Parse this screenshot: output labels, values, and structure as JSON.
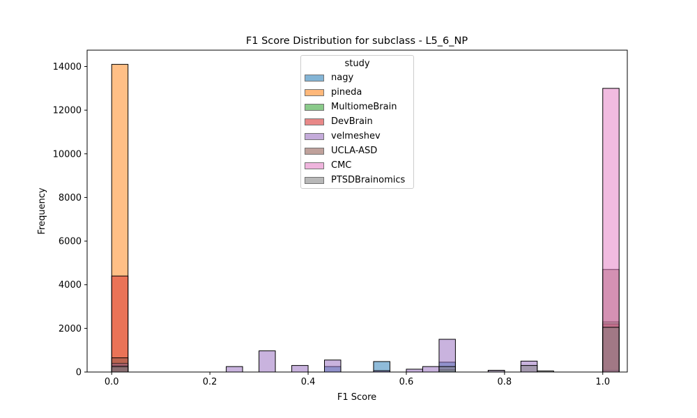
{
  "chart_data": {
    "type": "bar",
    "title": "F1 Score Distribution for subclass - L5_6_NP",
    "xlabel": "F1 Score",
    "ylabel": "Frequency",
    "xlim": [
      -0.05,
      1.05
    ],
    "ylim": [
      0,
      14750
    ],
    "xticks": [
      "0.0",
      "0.2",
      "0.4",
      "0.6",
      "0.8",
      "1.0"
    ],
    "xtick_values": [
      0,
      0.2,
      0.4,
      0.6,
      0.8,
      1.0
    ],
    "yticks": [
      "0",
      "2000",
      "4000",
      "6000",
      "8000",
      "10000",
      "12000",
      "14000"
    ],
    "ytick_values": [
      0,
      2000,
      4000,
      6000,
      8000,
      10000,
      12000,
      14000
    ],
    "bin_width": 0.0333,
    "legend_title": "study",
    "legend_position": "upper-center",
    "series": [
      {
        "name": "nagy",
        "color": "#1f77b4",
        "bars": [
          {
            "x": 0.0,
            "y": 250
          },
          {
            "x": 0.4333,
            "y": 250
          },
          {
            "x": 0.5333,
            "y": 480
          },
          {
            "x": 0.6667,
            "y": 450
          },
          {
            "x": 1.0,
            "y": 60
          }
        ]
      },
      {
        "name": "pineda",
        "color": "#ff7f0e",
        "bars": [
          {
            "x": 0.0,
            "y": 14100
          },
          {
            "x": 1.0,
            "y": 50
          }
        ]
      },
      {
        "name": "MultiomeBrain",
        "color": "#2ca02c",
        "bars": [
          {
            "x": 0.0,
            "y": 300
          },
          {
            "x": 0.6667,
            "y": 100
          },
          {
            "x": 1.0,
            "y": 2300
          }
        ]
      },
      {
        "name": "DevBrain",
        "color": "#d62728",
        "bars": [
          {
            "x": 0.0,
            "y": 4400
          },
          {
            "x": 1.0,
            "y": 2200
          }
        ]
      },
      {
        "name": "velmeshev",
        "color": "#9467bd",
        "bars": [
          {
            "x": 0.0,
            "y": 400
          },
          {
            "x": 0.2333,
            "y": 250
          },
          {
            "x": 0.3,
            "y": 970
          },
          {
            "x": 0.3667,
            "y": 300
          },
          {
            "x": 0.4333,
            "y": 550
          },
          {
            "x": 0.5333,
            "y": 60
          },
          {
            "x": 0.6,
            "y": 130
          },
          {
            "x": 0.6333,
            "y": 250
          },
          {
            "x": 0.6667,
            "y": 1500
          },
          {
            "x": 0.7667,
            "y": 80
          },
          {
            "x": 0.8333,
            "y": 500
          },
          {
            "x": 1.0,
            "y": 80
          }
        ]
      },
      {
        "name": "UCLA-ASD",
        "color": "#8c564b",
        "bars": [
          {
            "x": 0.0,
            "y": 650
          },
          {
            "x": 1.0,
            "y": 4700
          }
        ]
      },
      {
        "name": "CMC",
        "color": "#e377c2",
        "bars": [
          {
            "x": 1.0,
            "y": 13000
          }
        ]
      },
      {
        "name": "PTSDBrainomics",
        "color": "#7f7f7f",
        "bars": [
          {
            "x": 0.0,
            "y": 250
          },
          {
            "x": 0.6667,
            "y": 250
          },
          {
            "x": 0.7667,
            "y": 80
          },
          {
            "x": 0.8333,
            "y": 300
          },
          {
            "x": 0.8667,
            "y": 50
          },
          {
            "x": 1.0,
            "y": 2050
          }
        ]
      }
    ]
  }
}
